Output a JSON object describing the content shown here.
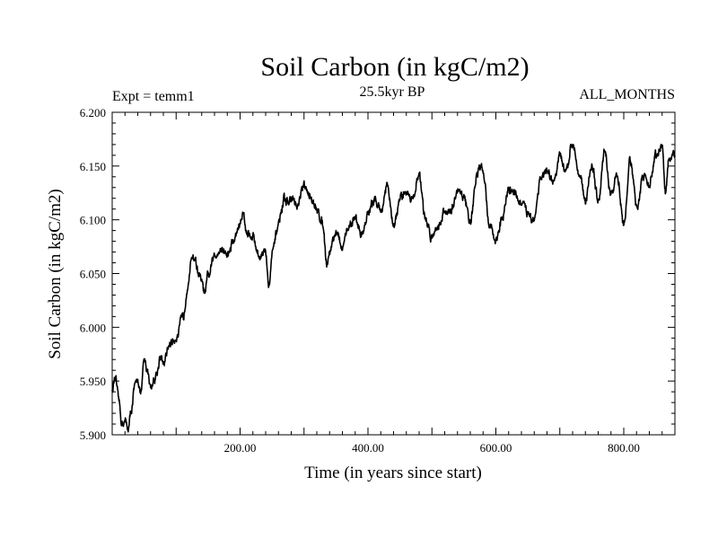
{
  "chart_data": {
    "type": "line",
    "title": "Soil Carbon (in kgC/m2)",
    "left_label": "Expt = temm1",
    "center_label": "25.5kyr BP",
    "right_label": "ALL_MONTHS",
    "xlabel": "Time (in years since start)",
    "ylabel": "Soil Carbon (in kgC/m2)",
    "xlim": [
      0,
      880
    ],
    "ylim": [
      5.9,
      6.2
    ],
    "x_ticks": [
      200,
      400,
      600,
      800
    ],
    "x_tick_labels": [
      "200.00",
      "400.00",
      "600.00",
      "800.00"
    ],
    "y_ticks": [
      5.9,
      5.95,
      6.0,
      6.05,
      6.1,
      6.15,
      6.2
    ],
    "y_tick_labels": [
      "5.900",
      "5.950",
      "6.000",
      "6.050",
      "6.100",
      "6.150",
      "6.200"
    ],
    "series": [
      {
        "name": "Soil Carbon",
        "color": "#000000",
        "x": [
          0,
          5,
          10,
          15,
          20,
          25,
          30,
          35,
          40,
          45,
          50,
          55,
          60,
          65,
          70,
          75,
          80,
          90,
          100,
          110,
          120,
          125,
          130,
          135,
          140,
          145,
          150,
          160,
          170,
          180,
          190,
          200,
          205,
          210,
          220,
          230,
          240,
          245,
          250,
          260,
          270,
          280,
          290,
          300,
          310,
          320,
          330,
          335,
          340,
          345,
          350,
          360,
          370,
          380,
          390,
          400,
          410,
          420,
          430,
          440,
          450,
          460,
          470,
          480,
          490,
          500,
          510,
          520,
          530,
          540,
          550,
          560,
          570,
          575,
          580,
          590,
          600,
          610,
          620,
          630,
          640,
          650,
          660,
          670,
          680,
          690,
          700,
          710,
          720,
          730,
          740,
          750,
          760,
          770,
          780,
          790,
          800,
          810,
          820,
          830,
          840,
          850,
          860,
          865,
          870,
          880
        ],
        "values": [
          5.942,
          5.955,
          5.935,
          5.912,
          5.915,
          5.908,
          5.925,
          5.945,
          5.952,
          5.94,
          5.97,
          5.96,
          5.945,
          5.95,
          5.96,
          5.975,
          5.965,
          5.985,
          5.99,
          6.01,
          6.045,
          6.065,
          6.062,
          6.048,
          6.04,
          6.03,
          6.045,
          6.065,
          6.075,
          6.07,
          6.08,
          6.095,
          6.105,
          6.09,
          6.085,
          6.065,
          6.07,
          6.04,
          6.07,
          6.095,
          6.115,
          6.12,
          6.11,
          6.13,
          6.12,
          6.11,
          6.095,
          6.06,
          6.07,
          6.08,
          6.09,
          6.075,
          6.095,
          6.1,
          6.085,
          6.105,
          6.12,
          6.11,
          6.13,
          6.095,
          6.115,
          6.125,
          6.12,
          6.14,
          6.1,
          6.085,
          6.095,
          6.105,
          6.11,
          6.125,
          6.12,
          6.1,
          6.14,
          6.15,
          6.145,
          6.095,
          6.08,
          6.1,
          6.13,
          6.125,
          6.115,
          6.105,
          6.1,
          6.14,
          6.145,
          6.135,
          6.16,
          6.14,
          6.17,
          6.145,
          6.12,
          6.15,
          6.115,
          6.16,
          6.12,
          6.14,
          6.095,
          6.155,
          6.11,
          6.14,
          6.13,
          6.16,
          6.17,
          6.125,
          6.155,
          6.16
        ]
      }
    ]
  }
}
